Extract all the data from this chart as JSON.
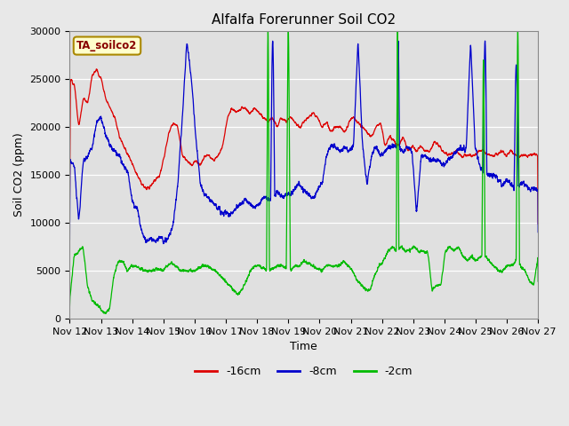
{
  "title": "Alfalfa Forerunner Soil CO2",
  "ylabel": "Soil CO2 (ppm)",
  "xlabel": "Time",
  "annotation": "TA_soilco2",
  "legend_labels": [
    "-16cm",
    "-8cm",
    "-2cm"
  ],
  "legend_colors": [
    "#dd0000",
    "#0000cc",
    "#00bb00"
  ],
  "x_tick_labels": [
    "Nov 12",
    "Nov 13",
    "Nov 14",
    "Nov 15",
    "Nov 16",
    "Nov 17",
    "Nov 18",
    "Nov 19",
    "Nov 20",
    "Nov 21",
    "Nov 22",
    "Nov 23",
    "Nov 24",
    "Nov 25",
    "Nov 26",
    "Nov 27"
  ],
  "ylim": [
    0,
    30000
  ],
  "fig_bg_color": "#e8e8e8",
  "plot_bg_color": "#e0e0e0",
  "title_fontsize": 11,
  "tick_fontsize": 8,
  "label_fontsize": 9,
  "annotation_color": "#880000",
  "annotation_bg": "#ffffcc",
  "annotation_edge": "#aa8800"
}
